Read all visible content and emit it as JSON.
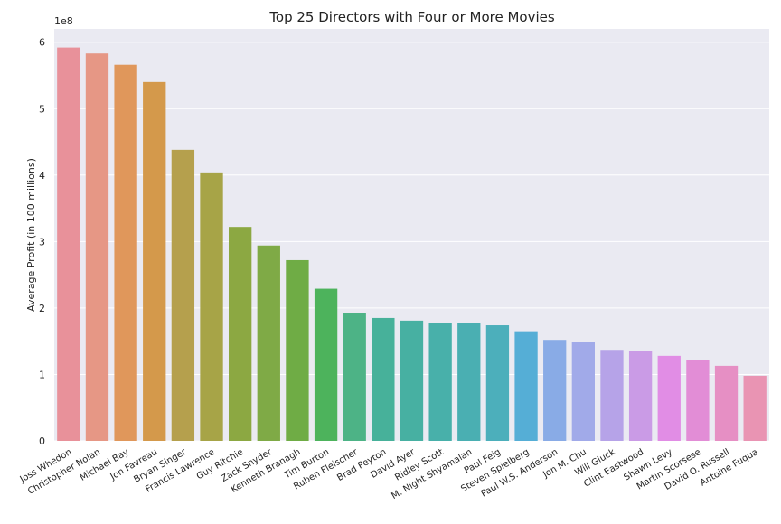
{
  "chart_data": {
    "type": "bar",
    "title": "Top 25 Directors with Four or More Movies",
    "xlabel": "",
    "ylabel": "Average Profit (in 100 millions)",
    "y_offset_label": "1e8",
    "y_tick_values": [
      0,
      1,
      2,
      3,
      4,
      5,
      6
    ],
    "y_tick_labels": [
      "0",
      "1",
      "2",
      "3",
      "4",
      "5",
      "6"
    ],
    "ylim": [
      0,
      6.2
    ],
    "grid": true,
    "background_color": "#eaeaf2",
    "grid_color": "#ffffff",
    "categories": [
      "Joss Whedon",
      "Christopher Nolan",
      "Michael Bay",
      "Jon Favreau",
      "Bryan Singer",
      "Francis Lawrence",
      "Guy Ritchie",
      "Zack Snyder",
      "Kenneth Branagh",
      "Tim Burton",
      "Ruben Fleischer",
      "Brad Peyton",
      "David Ayer",
      "Ridley Scott",
      "M. Night Shyamalan",
      "Paul Feig",
      "Steven Spielberg",
      "Paul W.S. Anderson",
      "Jon M. Chu",
      "Will Gluck",
      "Clint Eastwood",
      "Shawn Levy",
      "Martin Scorsese",
      "David O. Russell",
      "Antoine Fuqua"
    ],
    "values": [
      5.92,
      5.83,
      5.66,
      5.4,
      4.38,
      4.04,
      3.22,
      2.94,
      2.72,
      2.29,
      1.92,
      1.85,
      1.81,
      1.77,
      1.77,
      1.74,
      1.65,
      1.52,
      1.49,
      1.37,
      1.35,
      1.28,
      1.21,
      1.13,
      0.98
    ],
    "colors": [
      "#e8919a",
      "#e69785",
      "#e0975b",
      "#d4994b",
      "#b5a04d",
      "#a7a447",
      "#8ca842",
      "#7faa46",
      "#6fac45",
      "#4db35c",
      "#4db386",
      "#47b19a",
      "#47b0a2",
      "#48b0aa",
      "#4aafb2",
      "#4cafbb",
      "#55aed6",
      "#89abe6",
      "#a1aae9",
      "#b6a3e8",
      "#ca9be6",
      "#e18de5",
      "#e28dd6",
      "#e68fc4",
      "#e994b3"
    ]
  }
}
